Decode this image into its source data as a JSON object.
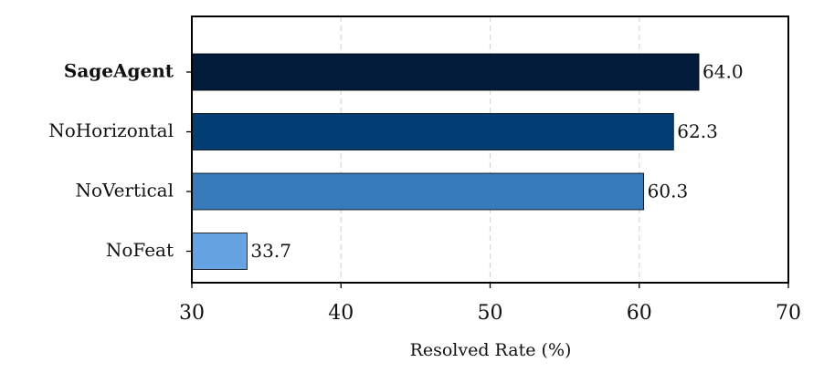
{
  "chart_data": {
    "type": "barh",
    "categories": [
      "SageAgent",
      "NoHorizontal",
      "NoVertical",
      "NoFeat"
    ],
    "values": [
      64.0,
      62.3,
      60.3,
      33.7
    ],
    "value_labels": [
      "64.0",
      "62.3",
      "60.3",
      "33.7"
    ],
    "colors": [
      "#031c3c",
      "#023e74",
      "#377bbb",
      "#65a3e2"
    ],
    "xlabel": "Resolved Rate (%)",
    "xlim": [
      30,
      70
    ],
    "xticks": [
      30,
      40,
      50,
      60,
      70
    ],
    "grid": true
  }
}
